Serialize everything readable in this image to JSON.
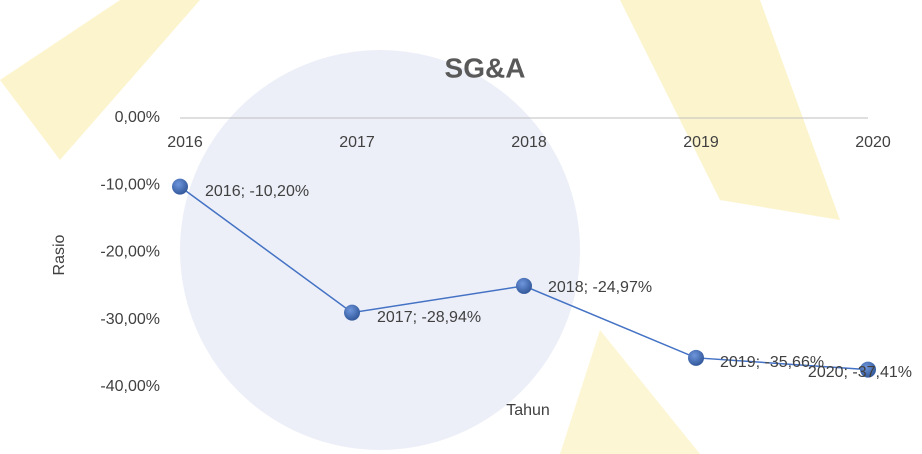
{
  "chart_data": {
    "type": "line",
    "title": "SG&A",
    "x_label": "Tahun",
    "y_label": "Rasio",
    "categories": [
      "2016",
      "2017",
      "2018",
      "2019",
      "2020"
    ],
    "values": [
      -10.2,
      -28.94,
      -24.97,
      -35.66,
      -37.41
    ],
    "value_labels": [
      "2016; -10,20%",
      "2017; -28,94%",
      "2018; -24,97%",
      "2019; -35,66%",
      "2020; -37,41%"
    ],
    "color": "#4472c4",
    "ylim": [
      -40,
      0
    ],
    "yticks": [
      {
        "value": 0,
        "label": "0,00%"
      },
      {
        "value": -10,
        "label": "-10,00%"
      },
      {
        "value": -20,
        "label": "-20,00%"
      },
      {
        "value": -30,
        "label": "-30,00%"
      },
      {
        "value": -40,
        "label": "-40,00%"
      }
    ]
  }
}
